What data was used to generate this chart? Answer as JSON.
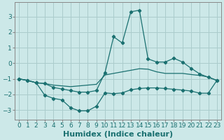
{
  "xlabel": "Humidex (Indice chaleur)",
  "bg_color": "#cce8e8",
  "grid_color": "#aacccc",
  "line_color": "#1a7070",
  "spine_color": "#888888",
  "xlim": [
    -0.5,
    23.5
  ],
  "ylim": [
    -3.6,
    3.9
  ],
  "yticks": [
    -3,
    -2,
    -1,
    0,
    1,
    2,
    3
  ],
  "xticks": [
    0,
    1,
    2,
    3,
    4,
    5,
    6,
    7,
    8,
    9,
    10,
    11,
    12,
    13,
    14,
    15,
    16,
    17,
    18,
    19,
    20,
    21,
    22,
    23
  ],
  "line1_x": [
    0,
    1,
    2,
    3,
    4,
    5,
    6,
    7,
    8,
    9,
    10,
    11,
    12,
    13,
    14,
    15,
    16,
    17,
    18,
    19,
    20,
    21,
    22,
    23
  ],
  "line1_y": [
    -1.0,
    -1.1,
    -1.25,
    -1.3,
    -1.4,
    -1.45,
    -1.5,
    -1.45,
    -1.4,
    -1.35,
    -0.75,
    -0.65,
    -0.55,
    -0.45,
    -0.35,
    -0.38,
    -0.55,
    -0.65,
    -0.65,
    -0.65,
    -0.72,
    -0.78,
    -0.88,
    -1.1
  ],
  "line2_x": [
    0,
    1,
    2,
    3,
    4,
    5,
    6,
    7,
    8,
    9,
    10,
    11,
    12,
    13,
    14,
    15,
    16,
    17,
    18,
    19,
    20,
    21,
    22,
    23
  ],
  "line2_y": [
    -1.0,
    -1.1,
    -1.25,
    -1.3,
    -1.55,
    -1.65,
    -1.75,
    -1.85,
    -1.85,
    -1.75,
    -0.6,
    1.7,
    1.3,
    3.3,
    3.4,
    0.28,
    0.08,
    0.08,
    0.32,
    0.08,
    -0.32,
    -0.68,
    -0.9,
    -1.1
  ],
  "line3_x": [
    0,
    1,
    2,
    3,
    4,
    5,
    6,
    7,
    8,
    9,
    10,
    11,
    12,
    13,
    14,
    15,
    16,
    17,
    18,
    19,
    20,
    21,
    22,
    23
  ],
  "line3_y": [
    -1.0,
    -1.1,
    -1.25,
    -2.05,
    -2.25,
    -2.35,
    -2.85,
    -3.05,
    -3.05,
    -2.75,
    -1.9,
    -1.95,
    -1.9,
    -1.7,
    -1.62,
    -1.58,
    -1.58,
    -1.62,
    -1.67,
    -1.72,
    -1.78,
    -1.92,
    -1.92,
    -1.1
  ],
  "xlabel_fontsize": 8,
  "tick_fontsize": 6.5
}
